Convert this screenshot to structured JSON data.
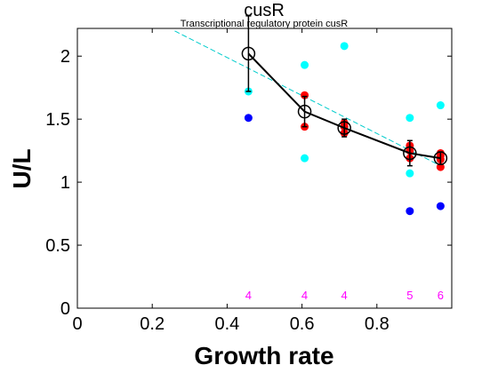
{
  "chart_data": {
    "type": "scatter",
    "title": "cusR",
    "subtitle": "Transcriptional regulatory protein cusR",
    "xlabel": "Growth rate",
    "ylabel": "U/L",
    "xlim": [
      0,
      1.0
    ],
    "ylim": [
      0,
      2.22
    ],
    "xticks": [
      0,
      0.2,
      0.4,
      0.6,
      0.8
    ],
    "xtick_labels": [
      "0",
      "0.2",
      "0.4",
      "0.6",
      "0.8"
    ],
    "yticks": [
      0,
      0.5,
      1,
      1.5,
      2
    ],
    "ytick_labels": [
      "0",
      "0.5",
      "1",
      "1.5",
      "2"
    ],
    "grid": false,
    "colors": {
      "red": "#ff0000",
      "cyan": "#00ffff",
      "blue": "#0000ff",
      "mean": "#000000",
      "fit": "#00cccc",
      "count": "#ff00ff"
    },
    "red_points": [
      {
        "x": 0.607,
        "y": 1.69
      },
      {
        "x": 0.607,
        "y": 1.44
      },
      {
        "x": 0.713,
        "y": 1.47
      },
      {
        "x": 0.713,
        "y": 1.44
      },
      {
        "x": 0.713,
        "y": 1.39
      },
      {
        "x": 0.888,
        "y": 1.29
      },
      {
        "x": 0.888,
        "y": 1.25
      },
      {
        "x": 0.888,
        "y": 1.19
      },
      {
        "x": 0.97,
        "y": 1.23
      },
      {
        "x": 0.97,
        "y": 1.21
      },
      {
        "x": 0.97,
        "y": 1.18
      },
      {
        "x": 0.97,
        "y": 1.12
      }
    ],
    "cyan_points": [
      {
        "x": 0.457,
        "y": 1.72
      },
      {
        "x": 0.607,
        "y": 1.93
      },
      {
        "x": 0.607,
        "y": 1.19
      },
      {
        "x": 0.713,
        "y": 2.08
      },
      {
        "x": 0.888,
        "y": 1.51
      },
      {
        "x": 0.888,
        "y": 1.07
      },
      {
        "x": 0.97,
        "y": 1.61
      }
    ],
    "blue_points": [
      {
        "x": 0.457,
        "y": 1.51
      },
      {
        "x": 0.888,
        "y": 0.77
      },
      {
        "x": 0.97,
        "y": 0.81
      }
    ],
    "mean_series": {
      "x": [
        0.457,
        0.607,
        0.713,
        0.888,
        0.97
      ],
      "y": [
        2.02,
        1.56,
        1.43,
        1.23,
        1.19
      ],
      "err": [
        0.3,
        0.12,
        0.07,
        0.1,
        0.05
      ]
    },
    "fit_line": {
      "x": [
        0.26,
        0.97
      ],
      "y": [
        2.2,
        1.13
      ]
    },
    "counts": [
      {
        "x": 0.457,
        "label": "4"
      },
      {
        "x": 0.607,
        "label": "4"
      },
      {
        "x": 0.713,
        "label": "4"
      },
      {
        "x": 0.888,
        "label": "5"
      },
      {
        "x": 0.97,
        "label": "6"
      }
    ],
    "count_label_y": 0.1
  }
}
